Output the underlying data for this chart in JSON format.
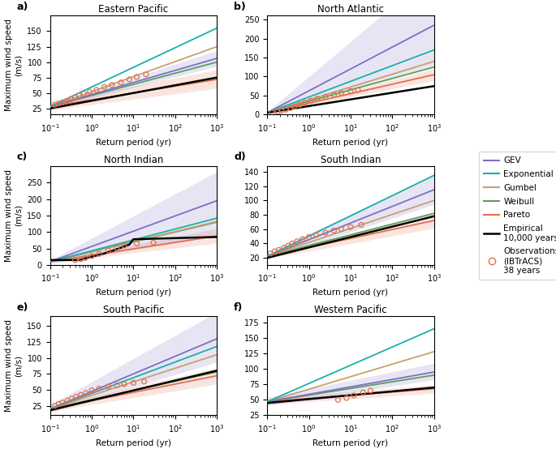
{
  "panels": [
    {
      "label": "a)",
      "title": "Eastern Pacific",
      "ylim": [
        15,
        175
      ],
      "yticks": [
        25,
        50,
        75,
        100,
        125,
        150
      ],
      "lines": {
        "Exponential": {
          "x0": 28,
          "x1": 155,
          "color": "#1ab0a6",
          "lw": 1.3
        },
        "Gumbel": {
          "x0": 28,
          "x1": 125,
          "color": "#c8a06a",
          "lw": 1.3
        },
        "GEV": {
          "x0": 28,
          "x1": 106,
          "color": "#7b6fc4",
          "lw": 1.3
        },
        "Weibull": {
          "x0": 28,
          "x1": 100,
          "color": "#5a9e5a",
          "lw": 1.3
        },
        "Pareto": {
          "x0": 28,
          "x1": 72,
          "color": "#e07050",
          "lw": 1.3
        },
        "Empirical": {
          "x0": 25,
          "x1": 75,
          "color": "#000000",
          "lw": 1.8
        }
      },
      "gev_shade": {
        "lo_mult": 0.88,
        "hi_mult": 1.12,
        "color": "#7b6fc4",
        "alpha": 0.18
      },
      "pareto_shade": {
        "lo_mult": 0.8,
        "hi_mult": 1.22,
        "color": "#e07050",
        "alpha": 0.18
      },
      "obs": [
        [
          0.13,
          31
        ],
        [
          0.16,
          33
        ],
        [
          0.2,
          35
        ],
        [
          0.25,
          37
        ],
        [
          0.32,
          40
        ],
        [
          0.4,
          43
        ],
        [
          0.5,
          46
        ],
        [
          0.65,
          49
        ],
        [
          0.9,
          52
        ],
        [
          1.3,
          55
        ],
        [
          2.0,
          60
        ],
        [
          3.0,
          63
        ],
        [
          5.0,
          67
        ],
        [
          8.0,
          72
        ],
        [
          12,
          76
        ],
        [
          20,
          80
        ]
      ]
    },
    {
      "label": "b)",
      "title": "North Atlantic",
      "ylim": [
        0,
        260
      ],
      "yticks": [
        0,
        50,
        100,
        150,
        200,
        250
      ],
      "lines": {
        "GEV": {
          "x0": 5,
          "x1": 235,
          "color": "#7b6fc4",
          "lw": 1.3
        },
        "Exponential": {
          "x0": 5,
          "x1": 170,
          "color": "#1ab0a6",
          "lw": 1.3
        },
        "Gumbel": {
          "x0": 5,
          "x1": 140,
          "color": "#c8a06a",
          "lw": 1.3
        },
        "Weibull": {
          "x0": 5,
          "x1": 125,
          "color": "#5a9e5a",
          "lw": 1.3
        },
        "Pareto": {
          "x0": 5,
          "x1": 105,
          "color": "#e07050",
          "lw": 1.3
        },
        "Empirical": {
          "x0": 5,
          "x1": 75,
          "color": "#000000",
          "lw": 1.8
        }
      },
      "gev_shade": {
        "lo_mult": 0.55,
        "hi_mult": 1.6,
        "color": "#7b6fc4",
        "alpha": 0.18
      },
      "pareto_shade": {
        "lo_mult": 0.85,
        "hi_mult": 1.15,
        "color": "#e07050",
        "alpha": 0.18
      },
      "obs": [
        [
          0.13,
          5
        ],
        [
          0.18,
          8
        ],
        [
          0.22,
          10
        ],
        [
          0.28,
          13
        ],
        [
          0.36,
          17
        ],
        [
          0.45,
          21
        ],
        [
          0.6,
          26
        ],
        [
          0.8,
          31
        ],
        [
          1.1,
          36
        ],
        [
          1.6,
          42
        ],
        [
          2.5,
          47
        ],
        [
          4.0,
          52
        ],
        [
          6.0,
          57
        ],
        [
          10,
          62
        ],
        [
          15,
          65
        ]
      ]
    },
    {
      "label": "c)",
      "title": "North Indian",
      "ylim": [
        0,
        300
      ],
      "yticks": [
        0,
        50,
        100,
        150,
        200,
        250
      ],
      "lines": {
        "GEV": {
          "x0": 10,
          "x1": 195,
          "color": "#7b6fc4",
          "lw": 1.3
        },
        "Exponential": {
          "x0": 10,
          "x1": 142,
          "color": "#1ab0a6",
          "lw": 1.3
        },
        "Gumbel": {
          "x0": 10,
          "x1": 132,
          "color": "#c8a06a",
          "lw": 1.3
        },
        "Weibull": {
          "x0": 10,
          "x1": 130,
          "color": "#5a9e5a",
          "lw": 1.3
        },
        "Pareto": {
          "x0": 10,
          "x1": 88,
          "color": "#e07050",
          "lw": 1.3
        },
        "Empirical": {
          "x0": 15,
          "x1": 85,
          "color": "#000000",
          "lw": 1.8
        }
      },
      "gev_shade": {
        "lo_mult": 0.45,
        "hi_mult": 1.45,
        "color": "#7b6fc4",
        "alpha": 0.18
      },
      "pareto_shade": {
        "lo_mult": 0.75,
        "hi_mult": 1.25,
        "color": "#e07050",
        "alpha": 0.18
      },
      "obs": [
        [
          0.4,
          15
        ],
        [
          0.55,
          18
        ],
        [
          0.7,
          21
        ],
        [
          1.0,
          27
        ],
        [
          1.5,
          34
        ],
        [
          2.5,
          44
        ],
        [
          4.0,
          52
        ],
        [
          6.0,
          59
        ],
        [
          12,
          65
        ],
        [
          30,
          68
        ]
      ],
      "empirical_special": true,
      "emp_pts": [
        [
          0.1,
          15
        ],
        [
          0.5,
          15
        ],
        [
          0.6,
          18
        ],
        [
          1.0,
          25
        ],
        [
          2.0,
          35
        ],
        [
          4.0,
          48
        ],
        [
          8.0,
          62
        ],
        [
          10,
          78
        ],
        [
          1000,
          85
        ]
      ]
    },
    {
      "label": "d)",
      "title": "South Indian",
      "ylim": [
        10,
        148
      ],
      "yticks": [
        20,
        40,
        60,
        80,
        100,
        120,
        140
      ],
      "lines": {
        "Exponential": {
          "x0": 22,
          "x1": 135,
          "color": "#1ab0a6",
          "lw": 1.3
        },
        "GEV": {
          "x0": 22,
          "x1": 115,
          "color": "#7b6fc4",
          "lw": 1.3
        },
        "Gumbel": {
          "x0": 22,
          "x1": 100,
          "color": "#c8a06a",
          "lw": 1.3
        },
        "Weibull": {
          "x0": 22,
          "x1": 82,
          "color": "#5a9e5a",
          "lw": 1.3
        },
        "Pareto": {
          "x0": 22,
          "x1": 72,
          "color": "#e07050",
          "lw": 1.3
        },
        "Empirical": {
          "x0": 20,
          "x1": 78,
          "color": "#000000",
          "lw": 1.8
        }
      },
      "gev_shade": {
        "lo_mult": 0.82,
        "hi_mult": 1.18,
        "color": "#7b6fc4",
        "alpha": 0.18
      },
      "pareto_shade": {
        "lo_mult": 0.85,
        "hi_mult": 1.15,
        "color": "#e07050",
        "alpha": 0.18
      },
      "obs": [
        [
          0.12,
          26
        ],
        [
          0.15,
          29
        ],
        [
          0.19,
          31
        ],
        [
          0.25,
          34
        ],
        [
          0.32,
          37
        ],
        [
          0.4,
          40
        ],
        [
          0.52,
          43
        ],
        [
          0.7,
          46
        ],
        [
          1.0,
          49
        ],
        [
          1.5,
          52
        ],
        [
          2.5,
          55
        ],
        [
          4.0,
          58
        ],
        [
          6.0,
          60
        ],
        [
          10,
          63
        ],
        [
          18,
          66
        ]
      ]
    },
    {
      "label": "e)",
      "title": "South Pacific",
      "ylim": [
        10,
        165
      ],
      "yticks": [
        25,
        50,
        75,
        100,
        125,
        150
      ],
      "lines": {
        "GEV": {
          "x0": 20,
          "x1": 130,
          "color": "#7b6fc4",
          "lw": 1.3
        },
        "Exponential": {
          "x0": 20,
          "x1": 118,
          "color": "#1ab0a6",
          "lw": 1.3
        },
        "Gumbel": {
          "x0": 20,
          "x1": 105,
          "color": "#c8a06a",
          "lw": 1.3
        },
        "Weibull": {
          "x0": 20,
          "x1": 78,
          "color": "#5a9e5a",
          "lw": 1.3
        },
        "Pareto": {
          "x0": 20,
          "x1": 72,
          "color": "#e07050",
          "lw": 1.3
        },
        "Empirical": {
          "x0": 18,
          "x1": 80,
          "color": "#000000",
          "lw": 1.8
        }
      },
      "gev_shade": {
        "lo_mult": 0.72,
        "hi_mult": 1.32,
        "color": "#7b6fc4",
        "alpha": 0.18
      },
      "pareto_shade": {
        "lo_mult": 0.82,
        "hi_mult": 1.18,
        "color": "#e07050",
        "alpha": 0.18
      },
      "obs": [
        [
          0.13,
          25
        ],
        [
          0.16,
          28
        ],
        [
          0.2,
          30
        ],
        [
          0.26,
          33
        ],
        [
          0.33,
          36
        ],
        [
          0.42,
          39
        ],
        [
          0.55,
          42
        ],
        [
          0.72,
          45
        ],
        [
          1.0,
          49
        ],
        [
          1.5,
          52
        ],
        [
          2.5,
          55
        ],
        [
          4.0,
          57
        ],
        [
          6.0,
          59
        ],
        [
          10,
          61
        ],
        [
          18,
          63
        ]
      ]
    },
    {
      "label": "f)",
      "title": "Western Pacific",
      "ylim": [
        25,
        185
      ],
      "yticks": [
        25,
        50,
        75,
        100,
        125,
        150,
        175
      ],
      "lines": {
        "Exponential": {
          "x0": 47,
          "x1": 165,
          "color": "#1ab0a6",
          "lw": 1.3
        },
        "Gumbel": {
          "x0": 47,
          "x1": 128,
          "color": "#c8a06a",
          "lw": 1.3
        },
        "GEV": {
          "x0": 47,
          "x1": 95,
          "color": "#7b6fc4",
          "lw": 1.3
        },
        "Weibull": {
          "x0": 47,
          "x1": 90,
          "color": "#5a9e5a",
          "lw": 1.3
        },
        "Pareto": {
          "x0": 47,
          "x1": 68,
          "color": "#e07050",
          "lw": 1.3
        },
        "Empirical": {
          "x0": 45,
          "x1": 70,
          "color": "#000000",
          "lw": 1.8
        }
      },
      "gev_shade": {
        "lo_mult": 0.87,
        "hi_mult": 1.15,
        "color": "#7b6fc4",
        "alpha": 0.18
      },
      "pareto_shade": {
        "lo_mult": 0.9,
        "hi_mult": 1.1,
        "color": "#e07050",
        "alpha": 0.18
      },
      "obs": [
        [
          5,
          50
        ],
        [
          8,
          53
        ],
        [
          12,
          57
        ],
        [
          20,
          62
        ],
        [
          30,
          65
        ]
      ]
    }
  ],
  "xlim": [
    0.1,
    1000
  ],
  "xlabel": "Return period (yr)",
  "ylabel": "Maximum wind speed\n(m/s)"
}
